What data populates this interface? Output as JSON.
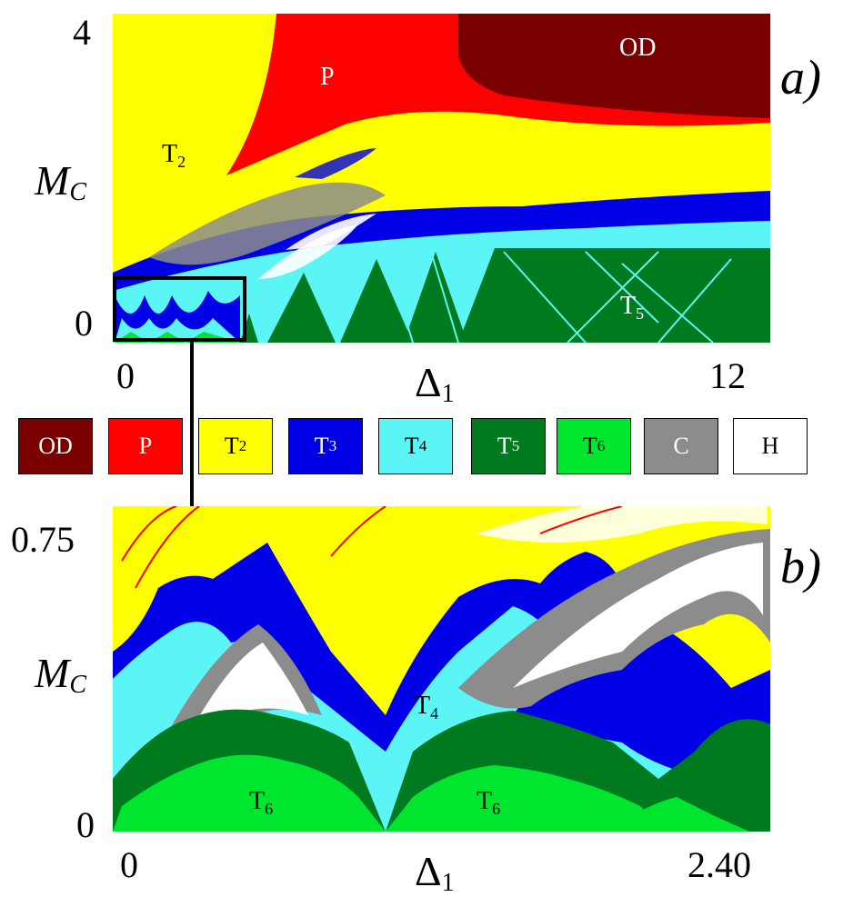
{
  "chart_data": [
    {
      "type": "heatmap",
      "panel_label": "a)",
      "xlabel": {
        "main": "Δ",
        "sub": "1"
      },
      "ylabel": {
        "main": "M",
        "sub": "C"
      },
      "x_ticks": [
        "0",
        "12"
      ],
      "y_ticks": [
        "4",
        "0"
      ],
      "xlim": [
        0,
        12
      ],
      "ylim": [
        0,
        4
      ],
      "region_labels": [
        {
          "main": "OD",
          "sub": "",
          "text_color": "#ffffff"
        },
        {
          "main": "P",
          "sub": "",
          "text_color": "#ffffff"
        },
        {
          "main": "T",
          "sub": "2",
          "text_color": "#000000"
        },
        {
          "main": "T",
          "sub": "5",
          "text_color": "#ffffff"
        }
      ]
    },
    {
      "type": "heatmap",
      "panel_label": "b)",
      "xlabel": {
        "main": "Δ",
        "sub": "1"
      },
      "ylabel": {
        "main": "M",
        "sub": "C"
      },
      "x_ticks": [
        "0",
        "2.40"
      ],
      "y_ticks": [
        "0.75",
        "0"
      ],
      "xlim": [
        0,
        2.4
      ],
      "ylim": [
        0,
        0.75
      ],
      "region_labels": [
        {
          "main": "T",
          "sub": "4",
          "text_color": "#000000"
        },
        {
          "main": "T",
          "sub": "6",
          "text_color": "#000000"
        },
        {
          "main": "T",
          "sub": "6",
          "text_color": "#000000"
        }
      ]
    }
  ],
  "legend": [
    {
      "main": "OD",
      "sub": "",
      "color": "#7a0000",
      "text_color": "#ffffff"
    },
    {
      "main": "P",
      "sub": "",
      "color": "#ff0000",
      "text_color": "#ffffff"
    },
    {
      "main": "T",
      "sub": "2",
      "color": "#ffff00",
      "text_color": "#000000"
    },
    {
      "main": "T",
      "sub": "3",
      "color": "#0000e6",
      "text_color": "#ffffff"
    },
    {
      "main": "T",
      "sub": "4",
      "color": "#5cf5f5",
      "text_color": "#000000"
    },
    {
      "main": "T",
      "sub": "5",
      "color": "#007a1e",
      "text_color": "#ffffff"
    },
    {
      "main": "T",
      "sub": "6",
      "color": "#00e62e",
      "text_color": "#000000"
    },
    {
      "main": "C",
      "sub": "",
      "color": "#8c8c8c",
      "text_color": "#ffffff"
    },
    {
      "main": "H",
      "sub": "",
      "color": "#ffffff",
      "text_color": "#000000"
    }
  ],
  "colors": {
    "OD": "#7a0000",
    "P": "#ff0000",
    "T2": "#ffff00",
    "T3": "#0000e6",
    "T4": "#5cf5f5",
    "T5": "#007a1e",
    "T6": "#00e62e",
    "C": "#8c8c8c",
    "H": "#ffffff"
  }
}
